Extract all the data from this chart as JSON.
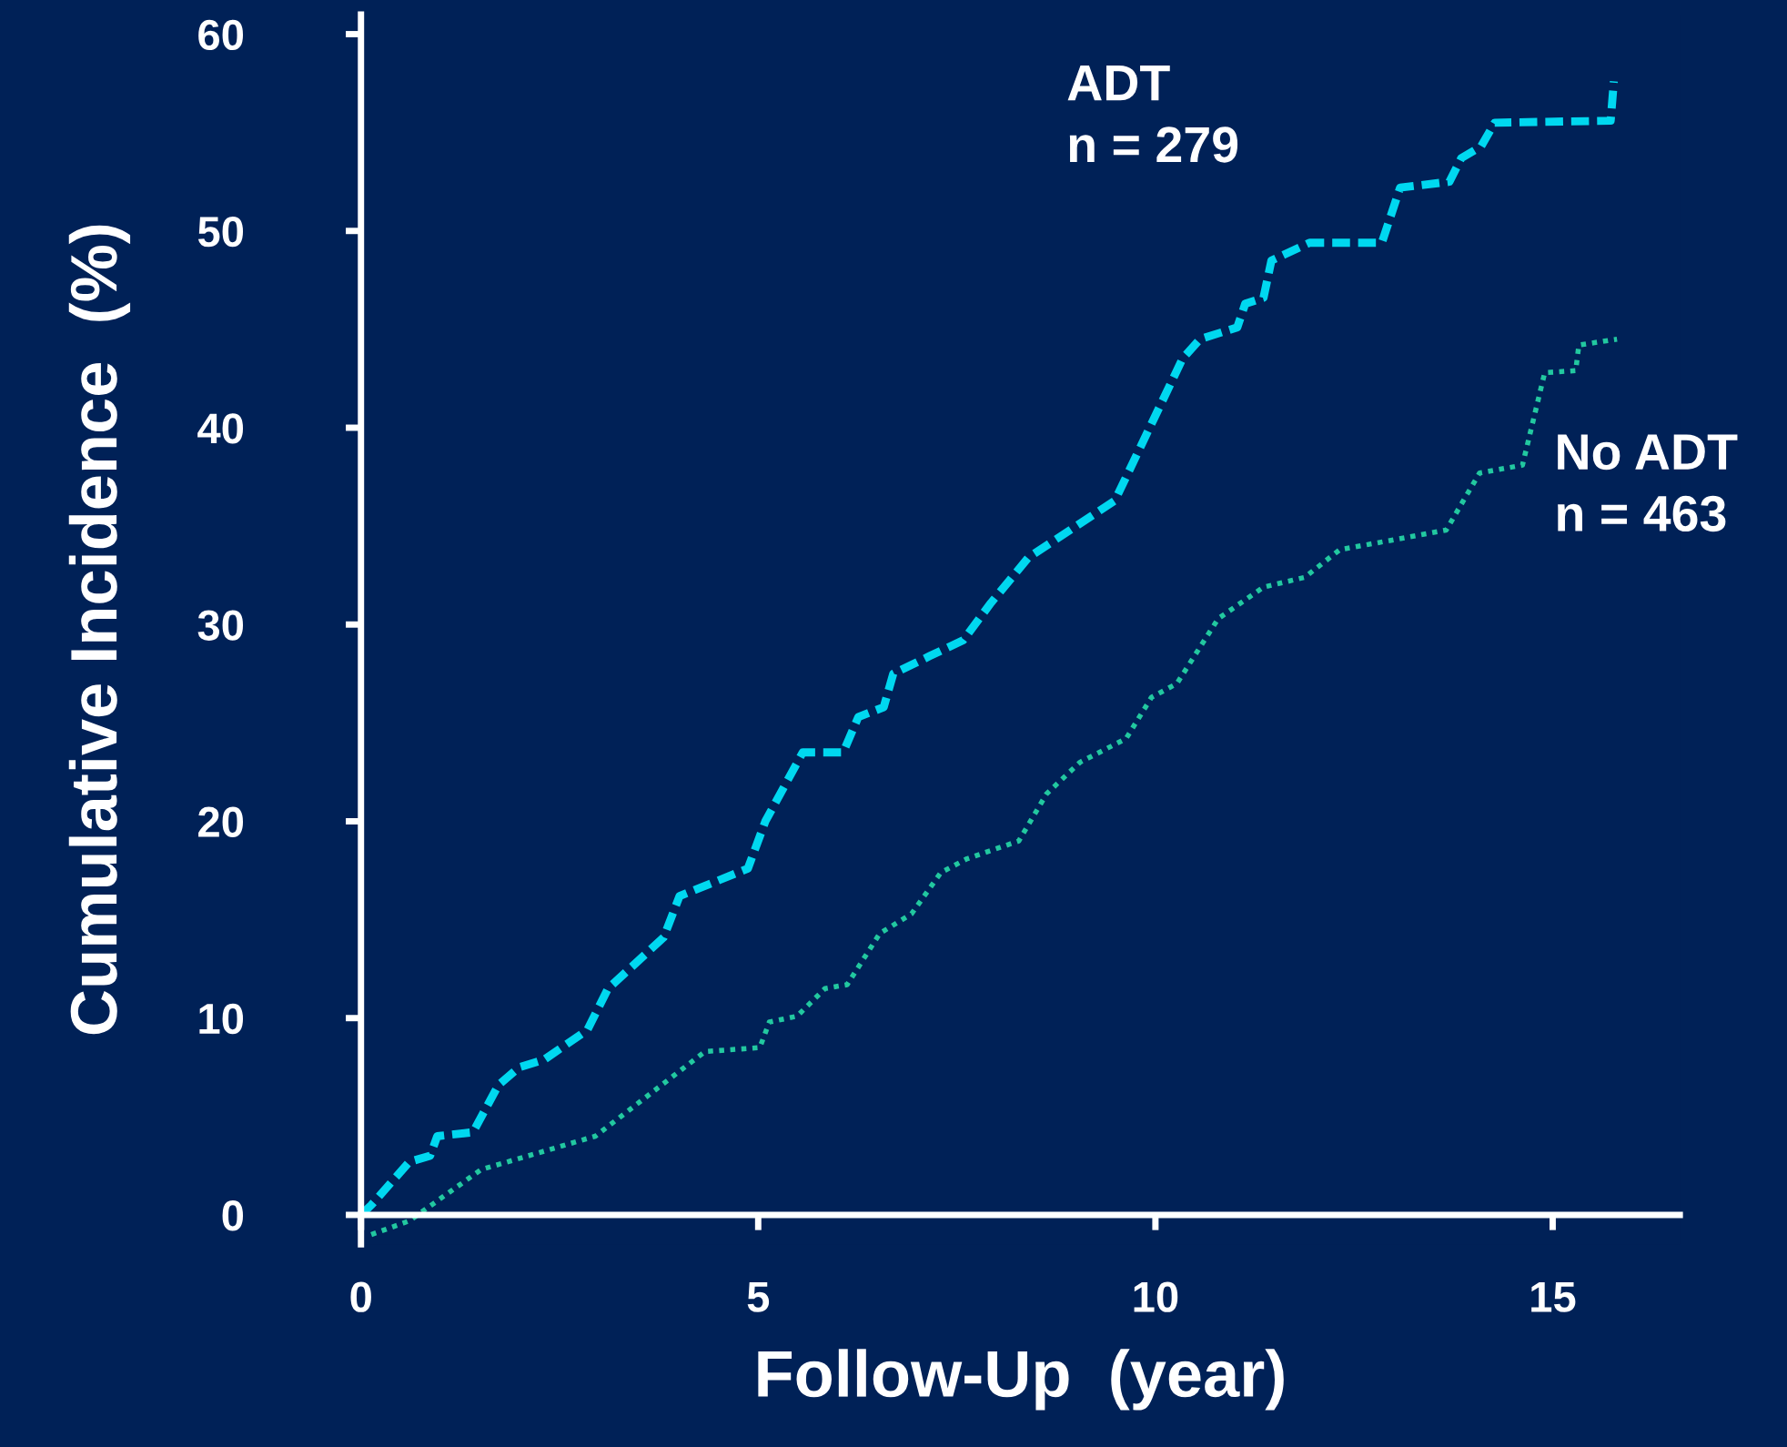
{
  "chart_data": {
    "type": "line",
    "xlabel": "Follow-Up  (year)",
    "ylabel": "Cumulative Incidence  (%)",
    "xlim": [
      0,
      16.6
    ],
    "xticks": [
      0,
      5,
      10,
      15
    ],
    "ylim": [
      -1.5,
      61
    ],
    "yticks": [
      0,
      10,
      20,
      30,
      40,
      50,
      60
    ],
    "grid": false,
    "legend": false,
    "series": [
      {
        "color": "#00d8f0",
        "line_style": "dashed",
        "x": [
          0,
          0.13,
          0.61,
          0.87,
          0.96,
          1.41,
          1.73,
          1.99,
          2.31,
          2.85,
          3.11,
          3.81,
          4.01,
          4.87,
          5.09,
          5.56,
          6.07,
          6.26,
          6.58,
          6.7,
          7.16,
          7.58,
          7.93,
          8.4,
          9.49,
          10.34,
          10.56,
          11.03,
          11.13,
          11.36,
          11.46,
          11.94,
          12.85,
          13.08,
          13.7,
          13.85,
          14.1,
          14.27,
          15.73,
          15.77
        ],
        "values": [
          0,
          0.5,
          2.7,
          3.0,
          4.0,
          4.2,
          6.6,
          7.5,
          7.9,
          9.4,
          11.5,
          14.1,
          16.2,
          17.6,
          20.0,
          23.5,
          23.5,
          25.3,
          25.8,
          27.5,
          28.4,
          29.2,
          31.1,
          33.4,
          36.3,
          43.5,
          44.5,
          45.1,
          46.3,
          46.6,
          48.5,
          49.4,
          49.4,
          52.2,
          52.5,
          53.7,
          54.3,
          55.5,
          55.6,
          57.6
        ]
      },
      {
        "color": "#22c8a0",
        "line_style": "dotted",
        "x": [
          0.13,
          0.61,
          1.51,
          2.95,
          4.33,
          5.02,
          5.14,
          5.49,
          5.84,
          6.12,
          6.53,
          6.93,
          7.3,
          7.63,
          8.28,
          8.63,
          9.05,
          9.63,
          9.95,
          10.27,
          10.79,
          11.36,
          11.88,
          12.32,
          13.66,
          14.08,
          14.62,
          14.9,
          15.29,
          15.33,
          15.81
        ],
        "values": [
          -1.0,
          -0.3,
          2.3,
          4.0,
          8.3,
          8.5,
          9.8,
          10.1,
          11.5,
          11.7,
          14.3,
          15.3,
          17.4,
          18.1,
          19.0,
          21.4,
          23.0,
          24.2,
          26.3,
          27.0,
          30.3,
          31.9,
          32.4,
          33.8,
          34.8,
          37.7,
          38.1,
          42.8,
          42.9,
          44.2,
          44.5
        ]
      }
    ],
    "annotations": [
      "ADT\nn = 279",
      "No ADT\nn = 463"
    ]
  }
}
